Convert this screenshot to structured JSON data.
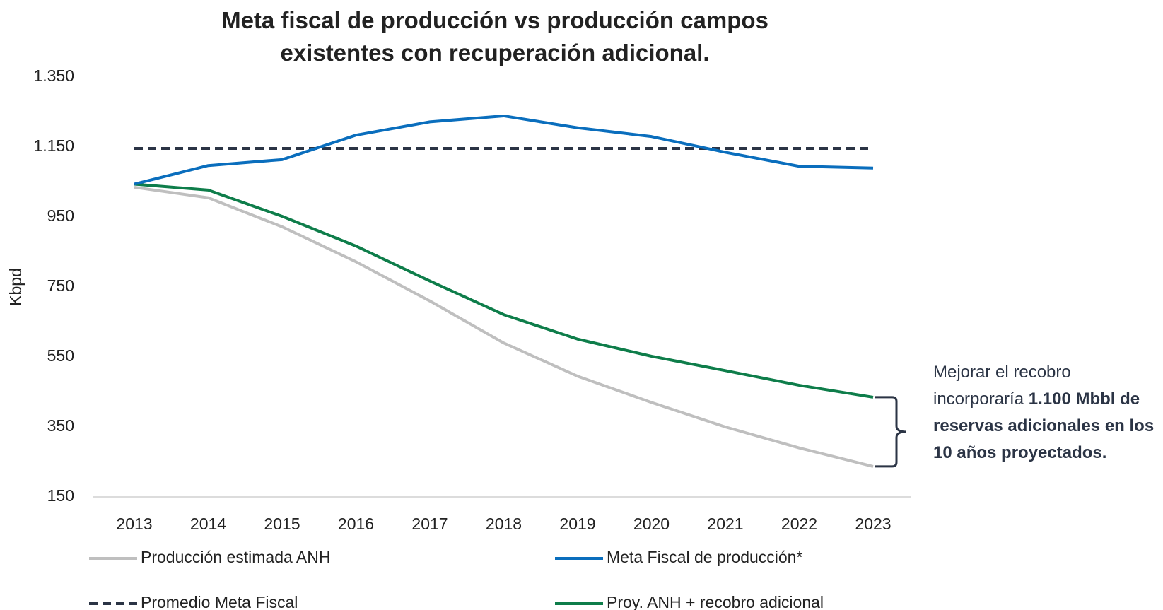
{
  "chart_data": {
    "type": "line",
    "title": "Meta fiscal de producción vs producción campos existentes con recuperación adicional.",
    "y_label": "Kbpd",
    "categories": [
      "2013",
      "2014",
      "2015",
      "2016",
      "2017",
      "2018",
      "2019",
      "2020",
      "2021",
      "2022",
      "2023"
    ],
    "series": [
      {
        "name": "Producción estimada ANH",
        "color": "#bfbfbf",
        "dash": false,
        "values": [
          1035,
          1005,
          922,
          822,
          710,
          590,
          495,
          420,
          350,
          290,
          237
        ]
      },
      {
        "name": "Meta Fiscal de producción*",
        "color": "#0a6ebd",
        "dash": false,
        "values": [
          1044,
          1097,
          1114,
          1184,
          1222,
          1239,
          1205,
          1180,
          1135,
          1095,
          1090
        ]
      },
      {
        "name": "Promedio Meta Fiscal",
        "color": "#2b3445",
        "dash": true,
        "values": [
          1146,
          1146,
          1146,
          1146,
          1146,
          1146,
          1146,
          1146,
          1146,
          1146,
          1146
        ]
      },
      {
        "name": "Proy. ANH + recobro adicional",
        "color": "#0e7d4a",
        "dash": false,
        "values": [
          1044,
          1027,
          952,
          867,
          767,
          671,
          601,
          552,
          511,
          469,
          435
        ]
      }
    ],
    "ylim": [
      150,
      1350
    ],
    "yticks": [
      {
        "value": 150,
        "label": "150"
      },
      {
        "value": 350,
        "label": "350"
      },
      {
        "value": 550,
        "label": "550"
      },
      {
        "value": 750,
        "label": "750"
      },
      {
        "value": 950,
        "label": "950"
      },
      {
        "value": 1150,
        "label": "1.150"
      },
      {
        "value": 1350,
        "label": "1.350"
      }
    ],
    "grid": false,
    "annotation": {
      "text": "Mejorar el recobro incorporaría ",
      "bold_text": "1.100 Mbbl de reservas adicionales en los 10 años proyectados."
    }
  }
}
